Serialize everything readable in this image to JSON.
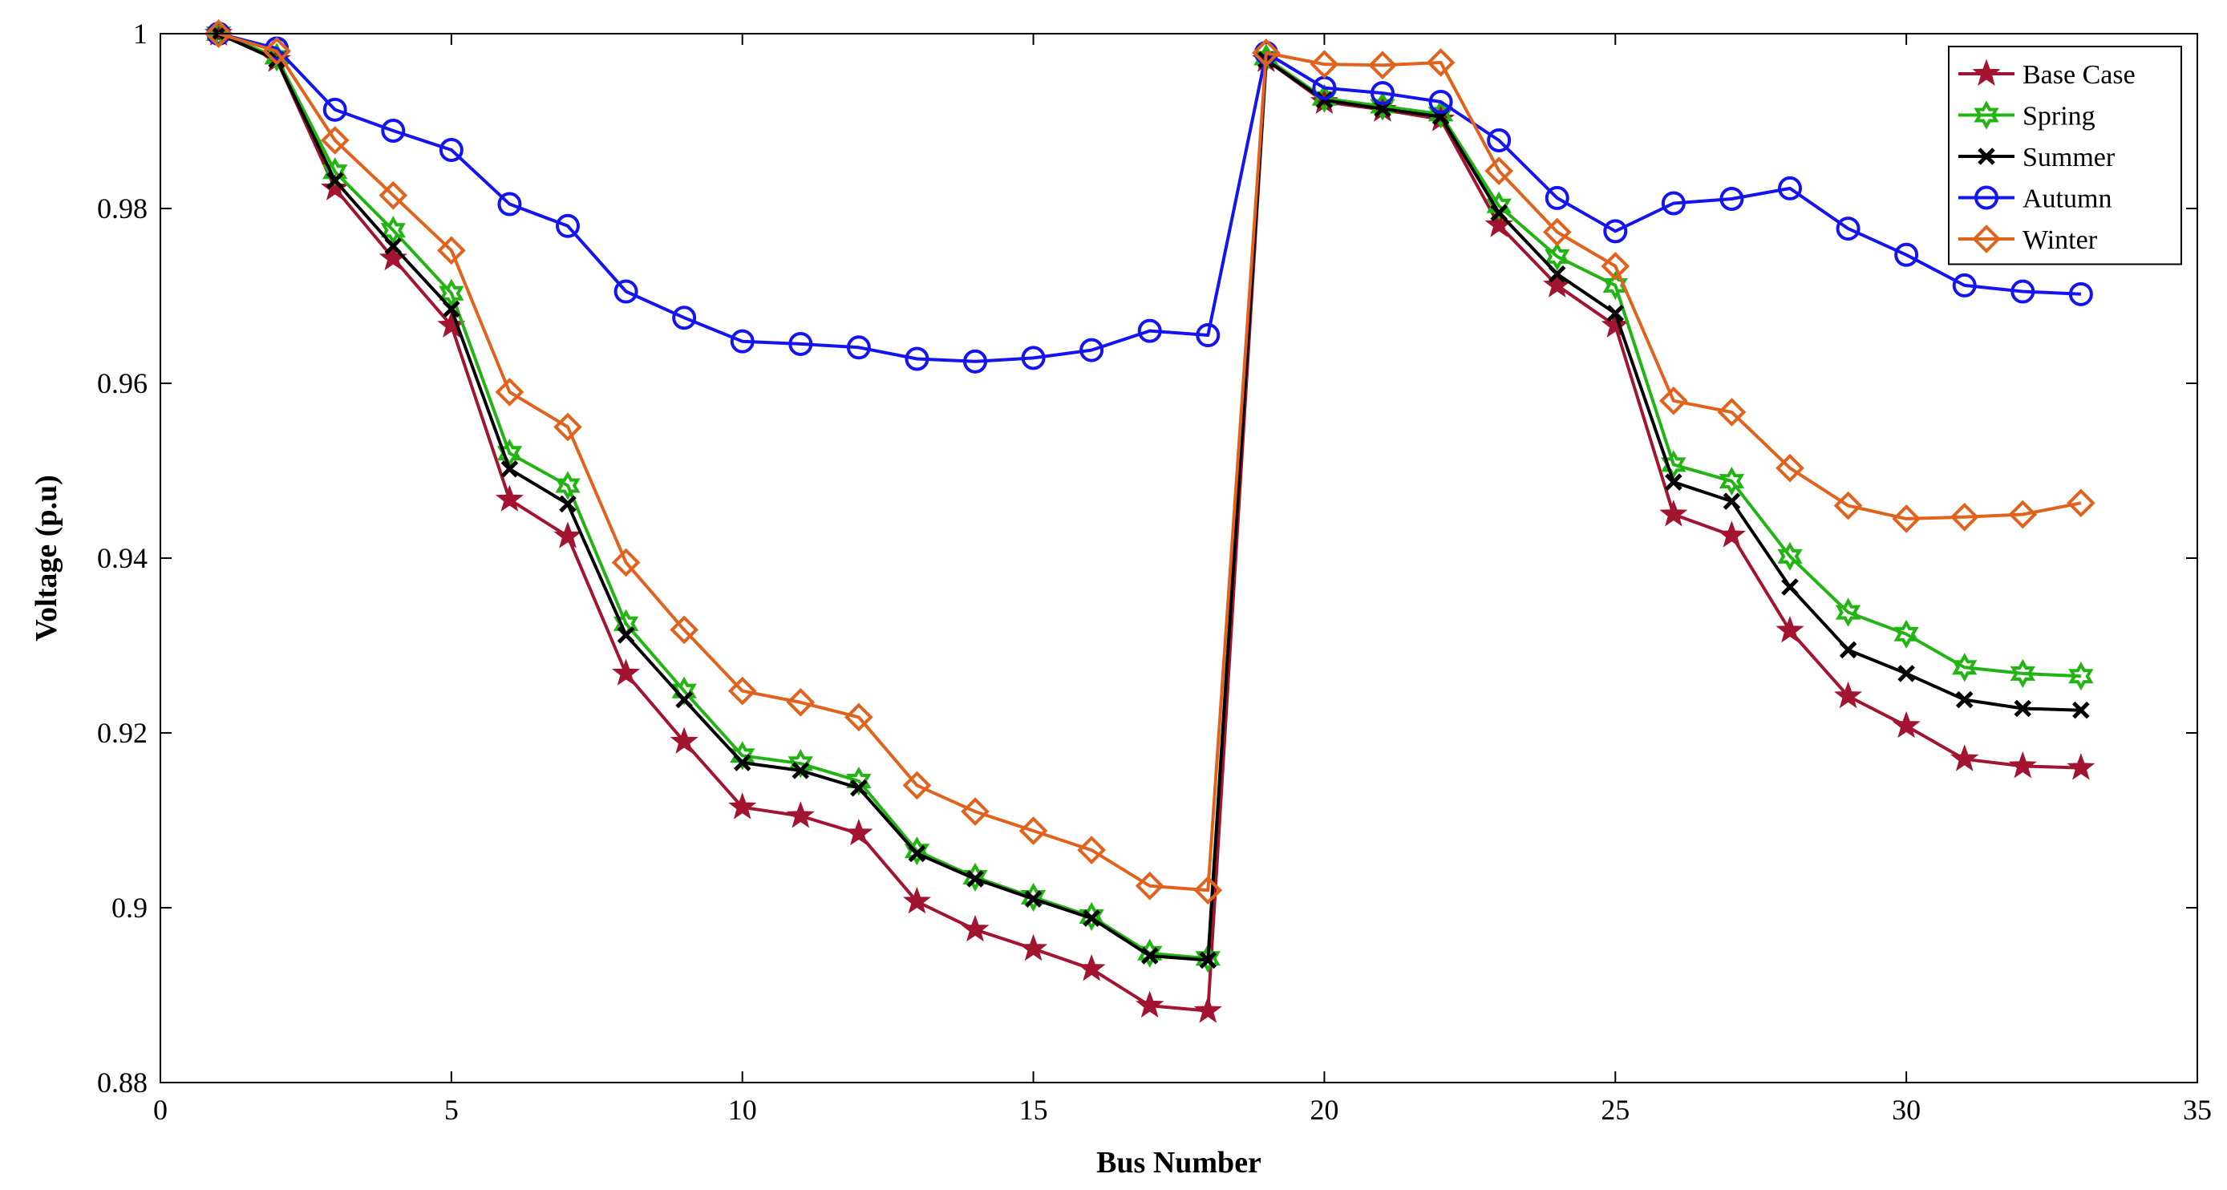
{
  "chart_data": {
    "type": "line",
    "title": "",
    "xlabel": "Bus Number",
    "ylabel": "Voltage (p.u)",
    "xlim": [
      0,
      35
    ],
    "ylim": [
      0.88,
      1.0
    ],
    "xticks": [
      0,
      5,
      10,
      15,
      20,
      25,
      30,
      35
    ],
    "yticks": [
      0.88,
      0.9,
      0.92,
      0.94,
      0.96,
      0.98,
      1.0
    ],
    "xtick_labels": [
      "0",
      "5",
      "10",
      "15",
      "20",
      "25",
      "30",
      "35"
    ],
    "ytick_labels": [
      "0.88",
      "0.9",
      "0.92",
      "0.94",
      "0.96",
      "0.98",
      "1"
    ],
    "grid": false,
    "legend_position": "top-right",
    "x": [
      1,
      2,
      3,
      4,
      5,
      6,
      7,
      8,
      9,
      10,
      11,
      12,
      13,
      14,
      15,
      16,
      17,
      18,
      19,
      20,
      21,
      22,
      23,
      24,
      25,
      26,
      27,
      28,
      29,
      30,
      31,
      32,
      33
    ],
    "series": [
      {
        "name": "Base Case",
        "color": "#a2142f",
        "marker": "star",
        "values": [
          1.0,
          0.997,
          0.9823,
          0.9743,
          0.9666,
          0.9467,
          0.9425,
          0.9268,
          0.919,
          0.9115,
          0.9105,
          0.9085,
          0.9007,
          0.8975,
          0.8953,
          0.893,
          0.8888,
          0.8882,
          0.997,
          0.9922,
          0.9913,
          0.9902,
          0.9781,
          0.9712,
          0.9666,
          0.945,
          0.9426,
          0.9317,
          0.9242,
          0.9208,
          0.917,
          0.9162,
          0.916
        ]
      },
      {
        "name": "Spring",
        "color": "#22b413",
        "marker": "hexagram",
        "values": [
          1.0,
          0.9973,
          0.9842,
          0.9775,
          0.9703,
          0.952,
          0.9483,
          0.9325,
          0.9248,
          0.9174,
          0.9165,
          0.9145,
          0.9065,
          0.9035,
          0.9012,
          0.899,
          0.8948,
          0.8942,
          0.9972,
          0.9926,
          0.9917,
          0.9908,
          0.9803,
          0.9745,
          0.9712,
          0.9507,
          0.9488,
          0.9402,
          0.9338,
          0.9313,
          0.9275,
          0.9268,
          0.9265
        ]
      },
      {
        "name": "Summer",
        "color": "#000000",
        "marker": "x",
        "values": [
          1.0,
          0.997,
          0.9832,
          0.9757,
          0.9685,
          0.9502,
          0.9462,
          0.9312,
          0.9238,
          0.9166,
          0.9157,
          0.9137,
          0.9062,
          0.9033,
          0.901,
          0.8988,
          0.8945,
          0.894,
          0.997,
          0.9924,
          0.9914,
          0.9905,
          0.9795,
          0.9725,
          0.968,
          0.9487,
          0.9465,
          0.9367,
          0.9295,
          0.9268,
          0.9238,
          0.9228,
          0.9226
        ]
      },
      {
        "name": "Autumn",
        "color": "#1414f0",
        "marker": "circle",
        "values": [
          1.0,
          0.9983,
          0.9913,
          0.9889,
          0.9867,
          0.9805,
          0.978,
          0.9705,
          0.9675,
          0.9648,
          0.9645,
          0.9641,
          0.9628,
          0.9625,
          0.9629,
          0.9638,
          0.966,
          0.9655,
          0.9978,
          0.9938,
          0.9932,
          0.9922,
          0.9878,
          0.9812,
          0.9774,
          0.9806,
          0.9811,
          0.9823,
          0.9777,
          0.9747,
          0.9712,
          0.9705,
          0.9702
        ]
      },
      {
        "name": "Winter",
        "color": "#e0621c",
        "marker": "diamond",
        "values": [
          1.0,
          0.998,
          0.9878,
          0.9815,
          0.9752,
          0.959,
          0.955,
          0.9395,
          0.9318,
          0.9248,
          0.9235,
          0.9218,
          0.914,
          0.911,
          0.9088,
          0.9066,
          0.9025,
          0.902,
          0.9978,
          0.9965,
          0.9964,
          0.9967,
          0.9843,
          0.9773,
          0.9734,
          0.958,
          0.9567,
          0.9503,
          0.946,
          0.9445,
          0.9447,
          0.945,
          0.9463
        ]
      }
    ]
  }
}
